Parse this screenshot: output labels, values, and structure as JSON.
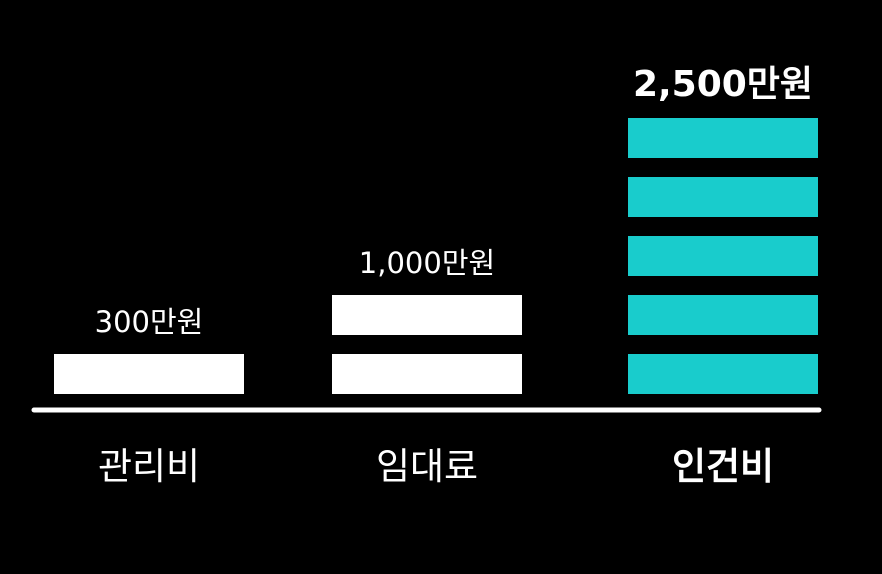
{
  "chart_data": {
    "type": "bar",
    "categories": [
      "관리비",
      "임대료",
      "인건비"
    ],
    "values": [
      300,
      1000,
      2500
    ],
    "value_labels": [
      "300만원",
      "1,000만원",
      "2,500만원"
    ],
    "unit": "만원",
    "segment_value": 500,
    "highlight_index": 2,
    "colors": {
      "background": "#000000",
      "bar": "#ffffff",
      "highlight_bar": "#19cccc",
      "text": "#ffffff",
      "baseline": "#ffffff"
    },
    "title": "",
    "xlabel": "",
    "ylabel": "",
    "legend": "none",
    "grid": false
  }
}
